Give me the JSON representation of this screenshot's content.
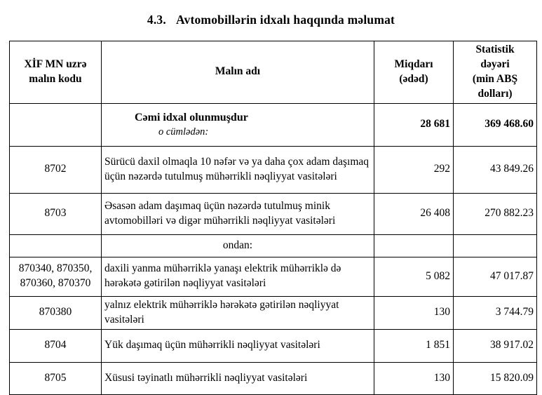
{
  "title": {
    "number": "4.3.",
    "text": "Avtomobillərin idxalı haqqında məlumat"
  },
  "table": {
    "headers": {
      "code": "XİF MN uzrə\nmalın kodu",
      "name": "Malın adı",
      "quantity": "Miqdarı\n(ədəd)",
      "value": "Statistik\ndəyəri\n(min ABŞ\ndolları)"
    },
    "rows": {
      "total": {
        "code": "",
        "name_line1": "Cəmi idxal olunmuşdur",
        "name_line2": "o cümlədən:",
        "quantity": "28 681",
        "value": "369 468.60"
      },
      "r8702": {
        "code": "8702",
        "name": "Sürücü daxil olmaqla 10 nəfər və ya daha çox adam daşımaq üçün nəzərdə tutulmuş mühərrikli nəqliyyat vasitələri",
        "quantity": "292",
        "value": "43 849.26"
      },
      "r8703": {
        "code": "8703",
        "name": "Əsasən adam daşımaq üçün nəzərdə tutulmuş minik avtomobilləri və digər mühərrikli nəqliyyat vasitələri",
        "quantity": "26 408",
        "value": "270 882.23"
      },
      "ondan": {
        "code": "",
        "name": "ondan:",
        "quantity": "",
        "value": ""
      },
      "hybrid": {
        "code": "870340, 870350,\n870360, 870370",
        "name": "daxili yanma mühərriklə yanaşı elektrik mühərriklə də hərəkətə gətirilən nəqliyyat vasitələri",
        "quantity": "5 082",
        "value": "47 017.87"
      },
      "electric": {
        "code": "870380",
        "name": "yalnız elektrik mühərriklə hərəkətə gətirilən nəqliyyat vasitələri",
        "quantity": "130",
        "value": "3 744.79"
      },
      "r8704": {
        "code": "8704",
        "name": "Yük daşımaq üçün mühərrikli nəqliyyat vasitələri",
        "quantity": "1 851",
        "value": "38 917.02"
      },
      "r8705": {
        "code": "8705",
        "name": "Xüsusi təyinatlı mühərrikli nəqliyyat vasitələri",
        "quantity": "130",
        "value": "15 820.09"
      }
    }
  }
}
